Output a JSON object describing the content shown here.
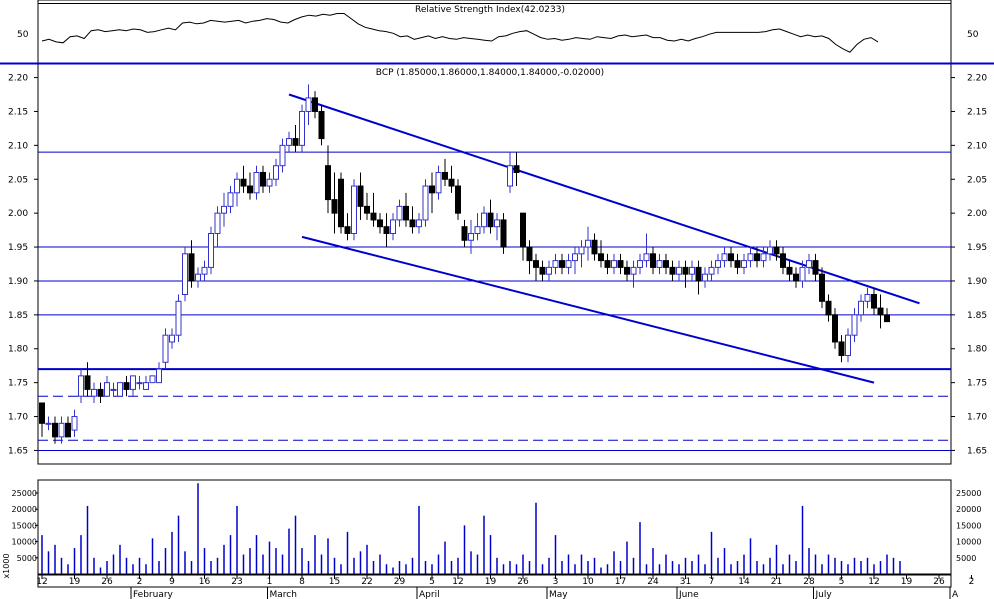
{
  "chart_data": [
    {
      "type": "line",
      "title": "Relative Strength Index(42.0233)",
      "ytick_labels": [
        "50"
      ],
      "ylim": [
        20,
        85
      ],
      "x_index_range": [
        0,
        119
      ],
      "series": [
        {
          "values": [
            42,
            44,
            41,
            40,
            47,
            48,
            45,
            54,
            55,
            53,
            54,
            55,
            54,
            56,
            55,
            52,
            53,
            55,
            57,
            55,
            63,
            64,
            62,
            63,
            66,
            65,
            64,
            65,
            66,
            63,
            65,
            66,
            68,
            67,
            64,
            63,
            67,
            70,
            72,
            71,
            73,
            72,
            74,
            74,
            68,
            62,
            58,
            56,
            54,
            53,
            51,
            47,
            48,
            44,
            46,
            48,
            45,
            47,
            45,
            44,
            46,
            45,
            44,
            43,
            42,
            47,
            48,
            51,
            53,
            54,
            50,
            46,
            44,
            45,
            43,
            44,
            46,
            45,
            44,
            47,
            46,
            45,
            48,
            49,
            47,
            48,
            49,
            46,
            46,
            43,
            42,
            44,
            42,
            45,
            47,
            50,
            52,
            52,
            52,
            52,
            52,
            52,
            52,
            53,
            55,
            56,
            53,
            50,
            47,
            49,
            47,
            48,
            45,
            38,
            33,
            29,
            38,
            44,
            46,
            41
          ]
        }
      ]
    },
    {
      "type": "candlestick",
      "title": "BCP (1.85000,1.86000,1.84000,1.84000,-0.02000)",
      "ylim": [
        1.63,
        2.22
      ],
      "ytick_labels": [
        "2.20",
        "2.15",
        "2.10",
        "2.05",
        "2.00",
        "1.95",
        "1.90",
        "1.85",
        "1.80",
        "1.75",
        "1.70",
        "1.65"
      ],
      "yticks": [
        2.2,
        2.15,
        2.1,
        2.05,
        2.0,
        1.95,
        1.9,
        1.85,
        1.8,
        1.75,
        1.7,
        1.65
      ],
      "x_index_range": [
        0,
        132
      ],
      "candles": [
        [
          1.72,
          1.72,
          1.67,
          1.69
        ],
        [
          1.69,
          1.7,
          1.68,
          1.69
        ],
        [
          1.69,
          1.7,
          1.66,
          1.67
        ],
        [
          1.67,
          1.7,
          1.66,
          1.69
        ],
        [
          1.69,
          1.7,
          1.67,
          1.67
        ],
        [
          1.68,
          1.71,
          1.67,
          1.7
        ],
        [
          1.73,
          1.77,
          1.72,
          1.76
        ],
        [
          1.76,
          1.78,
          1.73,
          1.74
        ],
        [
          1.73,
          1.75,
          1.72,
          1.74
        ],
        [
          1.74,
          1.75,
          1.72,
          1.73
        ],
        [
          1.73,
          1.76,
          1.73,
          1.75
        ],
        [
          1.74,
          1.75,
          1.73,
          1.74
        ],
        [
          1.73,
          1.75,
          1.73,
          1.75
        ],
        [
          1.75,
          1.76,
          1.73,
          1.74
        ],
        [
          1.74,
          1.76,
          1.73,
          1.76
        ],
        [
          1.75,
          1.76,
          1.74,
          1.75
        ],
        [
          1.74,
          1.76,
          1.74,
          1.75
        ],
        [
          1.75,
          1.76,
          1.75,
          1.76
        ],
        [
          1.75,
          1.78,
          1.75,
          1.77
        ],
        [
          1.78,
          1.83,
          1.77,
          1.82
        ],
        [
          1.81,
          1.83,
          1.8,
          1.82
        ],
        [
          1.82,
          1.88,
          1.81,
          1.87
        ],
        [
          1.88,
          1.95,
          1.87,
          1.94
        ],
        [
          1.94,
          1.96,
          1.89,
          1.9
        ],
        [
          1.9,
          1.92,
          1.89,
          1.91
        ],
        [
          1.91,
          1.93,
          1.9,
          1.92
        ],
        [
          1.92,
          1.98,
          1.91,
          1.97
        ],
        [
          1.97,
          2.01,
          1.95,
          2.0
        ],
        [
          2.0,
          2.03,
          1.98,
          2.01
        ],
        [
          2.01,
          2.04,
          2.0,
          2.03
        ],
        [
          2.03,
          2.06,
          2.01,
          2.05
        ],
        [
          2.05,
          2.07,
          2.03,
          2.04
        ],
        [
          2.04,
          2.06,
          2.02,
          2.03
        ],
        [
          2.03,
          2.07,
          2.02,
          2.06
        ],
        [
          2.06,
          2.07,
          2.03,
          2.04
        ],
        [
          2.04,
          2.06,
          2.03,
          2.05
        ],
        [
          2.05,
          2.08,
          2.04,
          2.07
        ],
        [
          2.07,
          2.11,
          2.06,
          2.1
        ],
        [
          2.1,
          2.12,
          2.09,
          2.11
        ],
        [
          2.11,
          2.13,
          2.09,
          2.1
        ],
        [
          2.1,
          2.16,
          2.09,
          2.15
        ],
        [
          2.15,
          2.19,
          2.13,
          2.17
        ],
        [
          2.17,
          2.18,
          2.14,
          2.15
        ],
        [
          2.15,
          2.16,
          2.1,
          2.11
        ],
        [
          2.07,
          2.1,
          2.0,
          2.02
        ],
        [
          2.02,
          2.06,
          1.97,
          2.0
        ],
        [
          2.05,
          2.06,
          1.97,
          1.98
        ],
        [
          1.98,
          2.0,
          1.96,
          1.97
        ],
        [
          1.97,
          2.05,
          1.96,
          2.04
        ],
        [
          2.04,
          2.06,
          1.99,
          2.01
        ],
        [
          2.01,
          2.03,
          1.99,
          2.0
        ],
        [
          2.0,
          2.03,
          1.98,
          1.99
        ],
        [
          1.99,
          2.0,
          1.97,
          1.98
        ],
        [
          1.98,
          2.0,
          1.95,
          1.97
        ],
        [
          1.97,
          2.0,
          1.96,
          1.99
        ],
        [
          1.99,
          2.02,
          1.98,
          2.01
        ],
        [
          2.01,
          2.03,
          1.98,
          1.99
        ],
        [
          1.99,
          2.01,
          1.97,
          1.98
        ],
        [
          1.98,
          2.0,
          1.97,
          1.99
        ],
        [
          1.99,
          2.05,
          1.98,
          2.04
        ],
        [
          2.04,
          2.06,
          2.0,
          2.03
        ],
        [
          2.03,
          2.07,
          2.02,
          2.06
        ],
        [
          2.06,
          2.08,
          2.04,
          2.05
        ],
        [
          2.05,
          2.07,
          2.03,
          2.04
        ],
        [
          2.04,
          2.05,
          1.99,
          2.0
        ],
        [
          1.98,
          1.99,
          1.95,
          1.96
        ],
        [
          1.96,
          1.99,
          1.94,
          1.97
        ],
        [
          1.97,
          2.0,
          1.96,
          1.98
        ],
        [
          1.98,
          2.01,
          1.97,
          2.0
        ],
        [
          2.0,
          2.02,
          1.97,
          1.98
        ],
        [
          1.98,
          2.0,
          1.96,
          1.99
        ],
        [
          1.99,
          2.0,
          1.94,
          1.95
        ],
        [
          2.04,
          2.09,
          2.03,
          2.07
        ],
        [
          2.07,
          2.09,
          2.04,
          2.06
        ],
        [
          2.0,
          2.0,
          1.93,
          1.95
        ],
        [
          1.95,
          1.96,
          1.91,
          1.93
        ],
        [
          1.93,
          1.94,
          1.9,
          1.92
        ],
        [
          1.92,
          1.93,
          1.9,
          1.91
        ],
        [
          1.91,
          1.93,
          1.9,
          1.92
        ],
        [
          1.92,
          1.94,
          1.91,
          1.93
        ],
        [
          1.93,
          1.94,
          1.91,
          1.92
        ],
        [
          1.92,
          1.94,
          1.91,
          1.93
        ],
        [
          1.93,
          1.95,
          1.91,
          1.94
        ],
        [
          1.94,
          1.96,
          1.92,
          1.95
        ],
        [
          1.95,
          1.98,
          1.93,
          1.96
        ],
        [
          1.96,
          1.97,
          1.93,
          1.94
        ],
        [
          1.94,
          1.96,
          1.92,
          1.93
        ],
        [
          1.93,
          1.94,
          1.91,
          1.92
        ],
        [
          1.92,
          1.94,
          1.91,
          1.93
        ],
        [
          1.93,
          1.94,
          1.91,
          1.92
        ],
        [
          1.92,
          1.93,
          1.9,
          1.91
        ],
        [
          1.91,
          1.93,
          1.89,
          1.92
        ],
        [
          1.92,
          1.94,
          1.91,
          1.93
        ],
        [
          1.93,
          1.97,
          1.92,
          1.94
        ],
        [
          1.94,
          1.95,
          1.91,
          1.92
        ],
        [
          1.92,
          1.94,
          1.91,
          1.93
        ],
        [
          1.93,
          1.94,
          1.91,
          1.92
        ],
        [
          1.92,
          1.93,
          1.9,
          1.91
        ],
        [
          1.91,
          1.93,
          1.9,
          1.92
        ],
        [
          1.92,
          1.93,
          1.89,
          1.91
        ],
        [
          1.91,
          1.93,
          1.9,
          1.92
        ],
        [
          1.92,
          1.93,
          1.88,
          1.9
        ],
        [
          1.9,
          1.92,
          1.89,
          1.91
        ],
        [
          1.91,
          1.93,
          1.9,
          1.92
        ],
        [
          1.92,
          1.94,
          1.91,
          1.93
        ],
        [
          1.93,
          1.95,
          1.92,
          1.94
        ],
        [
          1.94,
          1.95,
          1.92,
          1.93
        ],
        [
          1.93,
          1.94,
          1.91,
          1.92
        ],
        [
          1.92,
          1.94,
          1.91,
          1.93
        ],
        [
          1.93,
          1.95,
          1.92,
          1.94
        ],
        [
          1.94,
          1.95,
          1.92,
          1.93
        ],
        [
          1.93,
          1.95,
          1.92,
          1.94
        ],
        [
          1.94,
          1.96,
          1.93,
          1.95
        ],
        [
          1.95,
          1.96,
          1.93,
          1.94
        ],
        [
          1.94,
          1.95,
          1.91,
          1.92
        ],
        [
          1.92,
          1.93,
          1.9,
          1.91
        ],
        [
          1.91,
          1.92,
          1.89,
          1.9
        ],
        [
          1.9,
          1.93,
          1.89,
          1.92
        ],
        [
          1.92,
          1.94,
          1.91,
          1.93
        ],
        [
          1.93,
          1.94,
          1.9,
          1.91
        ],
        [
          1.91,
          1.92,
          1.86,
          1.87
        ],
        [
          1.87,
          1.88,
          1.84,
          1.85
        ],
        [
          1.85,
          1.86,
          1.8,
          1.81
        ],
        [
          1.81,
          1.82,
          1.78,
          1.79
        ],
        [
          1.79,
          1.83,
          1.78,
          1.82
        ],
        [
          1.82,
          1.86,
          1.81,
          1.85
        ],
        [
          1.85,
          1.88,
          1.84,
          1.87
        ],
        [
          1.87,
          1.89,
          1.86,
          1.88
        ],
        [
          1.88,
          1.89,
          1.85,
          1.86
        ],
        [
          1.86,
          1.88,
          1.83,
          1.85
        ],
        [
          1.85,
          1.86,
          1.84,
          1.84
        ]
      ],
      "horizontal_lines": [
        {
          "value": 2.09,
          "style": "solid"
        },
        {
          "value": 1.95,
          "style": "solid"
        },
        {
          "value": 1.9,
          "style": "solid"
        },
        {
          "value": 1.85,
          "style": "solid"
        },
        {
          "value": 1.77,
          "style": "solid"
        },
        {
          "value": 1.73,
          "style": "dashed"
        },
        {
          "value": 1.665,
          "style": "dashed"
        },
        {
          "value": 1.65,
          "style": "solid"
        }
      ],
      "trend_lines": [
        {
          "from": [
            38,
            2.175
          ],
          "to": [
            135,
            1.867
          ]
        },
        {
          "from": [
            40,
            1.965
          ],
          "to": [
            128,
            1.75
          ]
        }
      ]
    },
    {
      "type": "bar",
      "title": "",
      "ylabel": "x1000",
      "ylim": [
        0,
        29000
      ],
      "ytick_labels": [
        "25000",
        "20000",
        "15000",
        "10000",
        "5000"
      ],
      "yticks": [
        25000,
        20000,
        15000,
        10000,
        5000
      ],
      "x_index_range": [
        0,
        132
      ],
      "values": [
        12000,
        7000,
        9000,
        5000,
        3000,
        8000,
        12000,
        21000,
        5000,
        2000,
        4000,
        6000,
        9000,
        5000,
        3000,
        5000,
        3000,
        11000,
        4000,
        8000,
        13000,
        18000,
        7000,
        4000,
        28000,
        8000,
        4000,
        5000,
        9000,
        12000,
        21000,
        6000,
        8000,
        12000,
        6000,
        10000,
        8000,
        6000,
        14000,
        18000,
        8000,
        4000,
        12000,
        6000,
        11000,
        5000,
        3000,
        13000,
        5000,
        7000,
        9000,
        4000,
        6000,
        3000,
        2000,
        4000,
        3000,
        5000,
        21000,
        4000,
        3000,
        6000,
        10000,
        4000,
        5000,
        15000,
        7000,
        6000,
        18000,
        12000,
        5000,
        3000,
        4000,
        3000,
        6000,
        4000,
        22000,
        3000,
        5000,
        12000,
        4000,
        6000,
        3000,
        6000,
        4000,
        5000,
        2000,
        3000,
        7000,
        4000,
        10000,
        5000,
        16000,
        3000,
        8000,
        3000,
        6000,
        4000,
        3000,
        5000,
        4000,
        6000,
        3000,
        13000,
        5000,
        8000,
        3000,
        4000,
        6000,
        11000,
        4000,
        3000,
        5000,
        9000,
        3000,
        6000,
        4000,
        21000,
        8000,
        6000,
        3000,
        6000,
        5000,
        4000,
        3000,
        5000,
        4000,
        5000,
        3000,
        4000,
        6000,
        5000,
        4000
      ]
    }
  ],
  "xaxis": {
    "ticks": [
      {
        "label": "12",
        "i": 0
      },
      {
        "label": "19",
        "i": 5
      },
      {
        "label": "26",
        "i": 10
      },
      {
        "label": "2",
        "i": 15
      },
      {
        "label": "9",
        "i": 20
      },
      {
        "label": "16",
        "i": 25
      },
      {
        "label": "23",
        "i": 30
      },
      {
        "label": "1",
        "i": 35
      },
      {
        "label": "8",
        "i": 40
      },
      {
        "label": "15",
        "i": 45
      },
      {
        "label": "22",
        "i": 50
      },
      {
        "label": "29",
        "i": 55
      },
      {
        "label": "5",
        "i": 60
      },
      {
        "label": "12",
        "i": 64
      },
      {
        "label": "19",
        "i": 69
      },
      {
        "label": "26",
        "i": 74
      },
      {
        "label": "3",
        "i": 79
      },
      {
        "label": "10",
        "i": 84
      },
      {
        "label": "17",
        "i": 89
      },
      {
        "label": "24",
        "i": 94
      },
      {
        "label": "31",
        "i": 99
      },
      {
        "label": "7",
        "i": 103
      },
      {
        "label": "14",
        "i": 108
      },
      {
        "label": "21",
        "i": 113
      },
      {
        "label": "28",
        "i": 118
      },
      {
        "label": "5",
        "i": 123
      },
      {
        "label": "12",
        "i": 128
      },
      {
        "label": "19",
        "i": 133
      },
      {
        "label": "26",
        "i": 138
      },
      {
        "label": "2",
        "i": 143
      }
    ],
    "months": [
      {
        "label": "February",
        "i": 14
      },
      {
        "label": "March",
        "i": 35
      },
      {
        "label": "April",
        "i": 58
      },
      {
        "label": "May",
        "i": 78
      },
      {
        "label": "June",
        "i": 98
      },
      {
        "label": "July",
        "i": 119
      },
      {
        "label": "A",
        "i": 140
      }
    ]
  },
  "colors": {
    "up": "#ffffff",
    "up_edge": "#3333cc",
    "down": "#000000",
    "lines": "#0000cc",
    "volume": "#0000cc",
    "rsi": "#000000"
  }
}
